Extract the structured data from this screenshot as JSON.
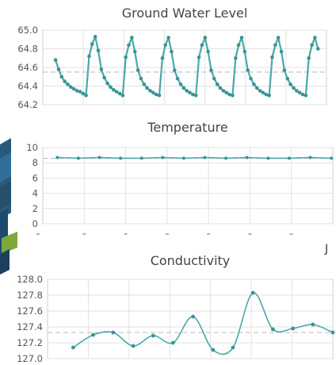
{
  "colors": {
    "series": "#4aa8a8",
    "marker": "#3a9494"
  },
  "chart_data": [
    {
      "type": "line",
      "title": "Ground Water Level",
      "xlabel": "",
      "ylabel": "",
      "ylim": [
        64.2,
        65.0
      ],
      "yticks": [
        "65.0",
        "64.8",
        "64.6",
        "64.4",
        "64.2"
      ],
      "ytick_values": [
        65.0,
        64.8,
        64.6,
        64.4,
        64.2
      ],
      "reference_line": 64.55,
      "grid": true,
      "series": [
        {
          "values": [
            64.68,
            64.58,
            64.5,
            64.45,
            64.42,
            64.39,
            64.37,
            64.35,
            64.34,
            64.32,
            64.3,
            64.72,
            64.85,
            64.93,
            64.78,
            64.58,
            64.49,
            64.43,
            64.39,
            64.36,
            64.34,
            64.32,
            64.3,
            64.71,
            64.84,
            64.92,
            64.77,
            64.57,
            64.48,
            64.42,
            64.38,
            64.35,
            64.33,
            64.31,
            64.3,
            64.7,
            64.84,
            64.92,
            64.77,
            64.57,
            64.48,
            64.42,
            64.38,
            64.35,
            64.33,
            64.31,
            64.3,
            64.71,
            64.84,
            64.92,
            64.77,
            64.57,
            64.48,
            64.42,
            64.38,
            64.35,
            64.33,
            64.31,
            64.3,
            64.7,
            64.84,
            64.92,
            64.77,
            64.57,
            64.48,
            64.42,
            64.38,
            64.35,
            64.33,
            64.31,
            64.3,
            64.71,
            64.84,
            64.92,
            64.77,
            64.57,
            64.48,
            64.42,
            64.38,
            64.35,
            64.33,
            64.31,
            64.3,
            64.7,
            64.84,
            64.92,
            64.8
          ]
        }
      ]
    },
    {
      "type": "line",
      "title": "Temperature",
      "xlabel": "",
      "ylabel": "",
      "ylim": [
        0,
        10
      ],
      "yticks": [
        "10",
        "8",
        "6",
        "4",
        "2",
        "0"
      ],
      "ytick_values": [
        10,
        8,
        6,
        4,
        2,
        0
      ],
      "reference_line": 8.6,
      "grid": true,
      "series": [
        {
          "values": [
            8.7,
            8.6,
            8.7,
            8.6,
            8.6,
            8.7,
            8.6,
            8.7,
            8.6,
            8.7,
            8.6,
            8.6,
            8.7,
            8.6
          ]
        }
      ]
    },
    {
      "type": "line",
      "title": "Conductivity",
      "xlabel": "",
      "ylabel": "",
      "ylim": [
        127.0,
        128.0
      ],
      "yticks": [
        "128.0",
        "127.8",
        "127.6",
        "127.4",
        "127.2",
        "127.0"
      ],
      "ytick_values": [
        128.0,
        127.8,
        127.6,
        127.4,
        127.2,
        127.0
      ],
      "reference_line": 127.33,
      "grid": true,
      "series": [
        {
          "values": [
            127.14,
            127.3,
            127.33,
            127.16,
            127.29,
            127.2,
            127.53,
            127.11,
            127.14,
            127.83,
            127.37,
            127.38,
            127.43,
            127.33
          ]
        }
      ]
    }
  ]
}
